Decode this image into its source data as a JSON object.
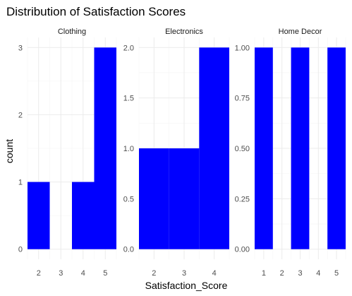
{
  "chart_data": {
    "type": "bar",
    "title": "Distribution of Satisfaction Scores",
    "xlabel": "Satisfaction_Score",
    "ylabel": "count",
    "bar_color": "#0000ff",
    "grid": true,
    "facets": [
      {
        "name": "Clothing",
        "bins": [
          {
            "x": 2,
            "count": 1
          },
          {
            "x": 3,
            "count": 0
          },
          {
            "x": 4,
            "count": 1
          },
          {
            "x": 5,
            "count": 3
          }
        ],
        "xlim": [
          1.5,
          5.5
        ],
        "ylim": [
          0,
          3
        ],
        "x_ticks": [
          2,
          3,
          4,
          5
        ],
        "y_ticks": [
          "0",
          "1",
          "2",
          "3"
        ]
      },
      {
        "name": "Electronics",
        "bins": [
          {
            "x": 2,
            "count": 1
          },
          {
            "x": 3,
            "count": 1
          },
          {
            "x": 4,
            "count": 2
          }
        ],
        "xlim": [
          1.5,
          4.5
        ],
        "ylim": [
          0,
          2
        ],
        "x_ticks": [
          2,
          3,
          4
        ],
        "y_ticks": [
          "0.0",
          "0.5",
          "1.0",
          "1.5",
          "2.0"
        ]
      },
      {
        "name": "Home Decor",
        "bins": [
          {
            "x": 1,
            "count": 1
          },
          {
            "x": 2,
            "count": 0
          },
          {
            "x": 3,
            "count": 1
          },
          {
            "x": 4,
            "count": 0
          },
          {
            "x": 5,
            "count": 1
          }
        ],
        "xlim": [
          0.5,
          5.5
        ],
        "ylim": [
          0,
          1
        ],
        "x_ticks": [
          1,
          2,
          3,
          4,
          5
        ],
        "y_ticks": [
          "0.00",
          "0.25",
          "0.50",
          "0.75",
          "1.00"
        ]
      }
    ]
  }
}
